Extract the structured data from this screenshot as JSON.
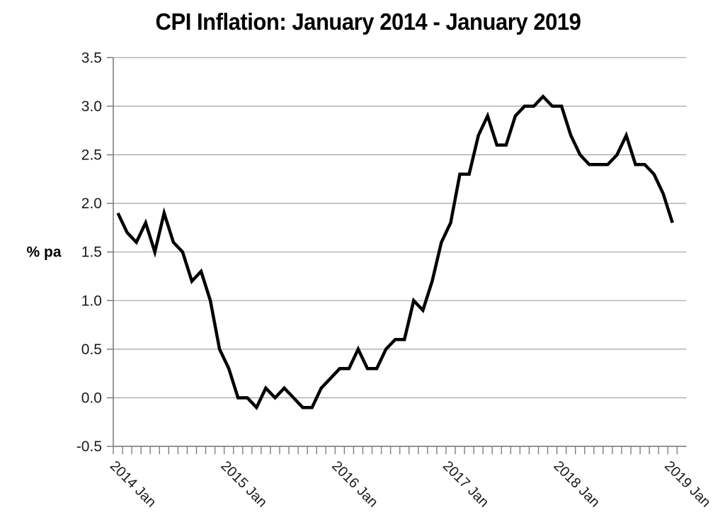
{
  "chart": {
    "title": "CPI Inflation: January 2014 - January 2019",
    "y_axis_unit": "% pa"
  },
  "chart_data": {
    "type": "line",
    "title": "CPI Inflation: January 2014 - January 2019",
    "xlabel": "",
    "ylabel": "% pa",
    "ylim": [
      -0.5,
      3.5
    ],
    "y_tick_step": 0.5,
    "y_tick_labels": [
      "3.5",
      "3.0",
      "2.5",
      "2.0",
      "1.5",
      "1.0",
      "0.5",
      "0.0",
      "-0.5"
    ],
    "x_tick_labels": [
      "2014 Jan",
      "2015 Jan",
      "2016 Jan",
      "2017 Jan",
      "2018 Jan",
      "2019 Jan"
    ],
    "grid": "horizontal",
    "legend": "none",
    "line_color": "#000000",
    "x": [
      "2014 Jan",
      "2014 Feb",
      "2014 Mar",
      "2014 Apr",
      "2014 May",
      "2014 Jun",
      "2014 Jul",
      "2014 Aug",
      "2014 Sep",
      "2014 Oct",
      "2014 Nov",
      "2014 Dec",
      "2015 Jan",
      "2015 Feb",
      "2015 Mar",
      "2015 Apr",
      "2015 May",
      "2015 Jun",
      "2015 Jul",
      "2015 Aug",
      "2015 Sep",
      "2015 Oct",
      "2015 Nov",
      "2015 Dec",
      "2016 Jan",
      "2016 Feb",
      "2016 Mar",
      "2016 Apr",
      "2016 May",
      "2016 Jun",
      "2016 Jul",
      "2016 Aug",
      "2016 Sep",
      "2016 Oct",
      "2016 Nov",
      "2016 Dec",
      "2017 Jan",
      "2017 Feb",
      "2017 Mar",
      "2017 Apr",
      "2017 May",
      "2017 Jun",
      "2017 Jul",
      "2017 Aug",
      "2017 Sep",
      "2017 Oct",
      "2017 Nov",
      "2017 Dec",
      "2018 Jan",
      "2018 Feb",
      "2018 Mar",
      "2018 Apr",
      "2018 May",
      "2018 Jun",
      "2018 Jul",
      "2018 Aug",
      "2018 Sep",
      "2018 Oct",
      "2018 Nov",
      "2018 Dec",
      "2019 Jan"
    ],
    "values": [
      1.9,
      1.7,
      1.6,
      1.8,
      1.5,
      1.9,
      1.6,
      1.5,
      1.2,
      1.3,
      1.0,
      0.5,
      0.3,
      0.0,
      0.0,
      -0.1,
      0.1,
      0.0,
      0.1,
      0.0,
      -0.1,
      -0.1,
      0.1,
      0.2,
      0.3,
      0.3,
      0.5,
      0.3,
      0.3,
      0.5,
      0.6,
      0.6,
      1.0,
      0.9,
      1.2,
      1.6,
      1.8,
      2.3,
      2.3,
      2.7,
      2.9,
      2.6,
      2.6,
      2.9,
      3.0,
      3.0,
      3.1,
      3.0,
      3.0,
      2.7,
      2.5,
      2.4,
      2.4,
      2.4,
      2.5,
      2.7,
      2.4,
      2.4,
      2.3,
      2.1,
      1.8
    ],
    "colors": {
      "gridline": "#a3a3a3",
      "axis": "#7d7d7d",
      "tick_label": "#1a1a1a",
      "title": "#000000"
    }
  }
}
